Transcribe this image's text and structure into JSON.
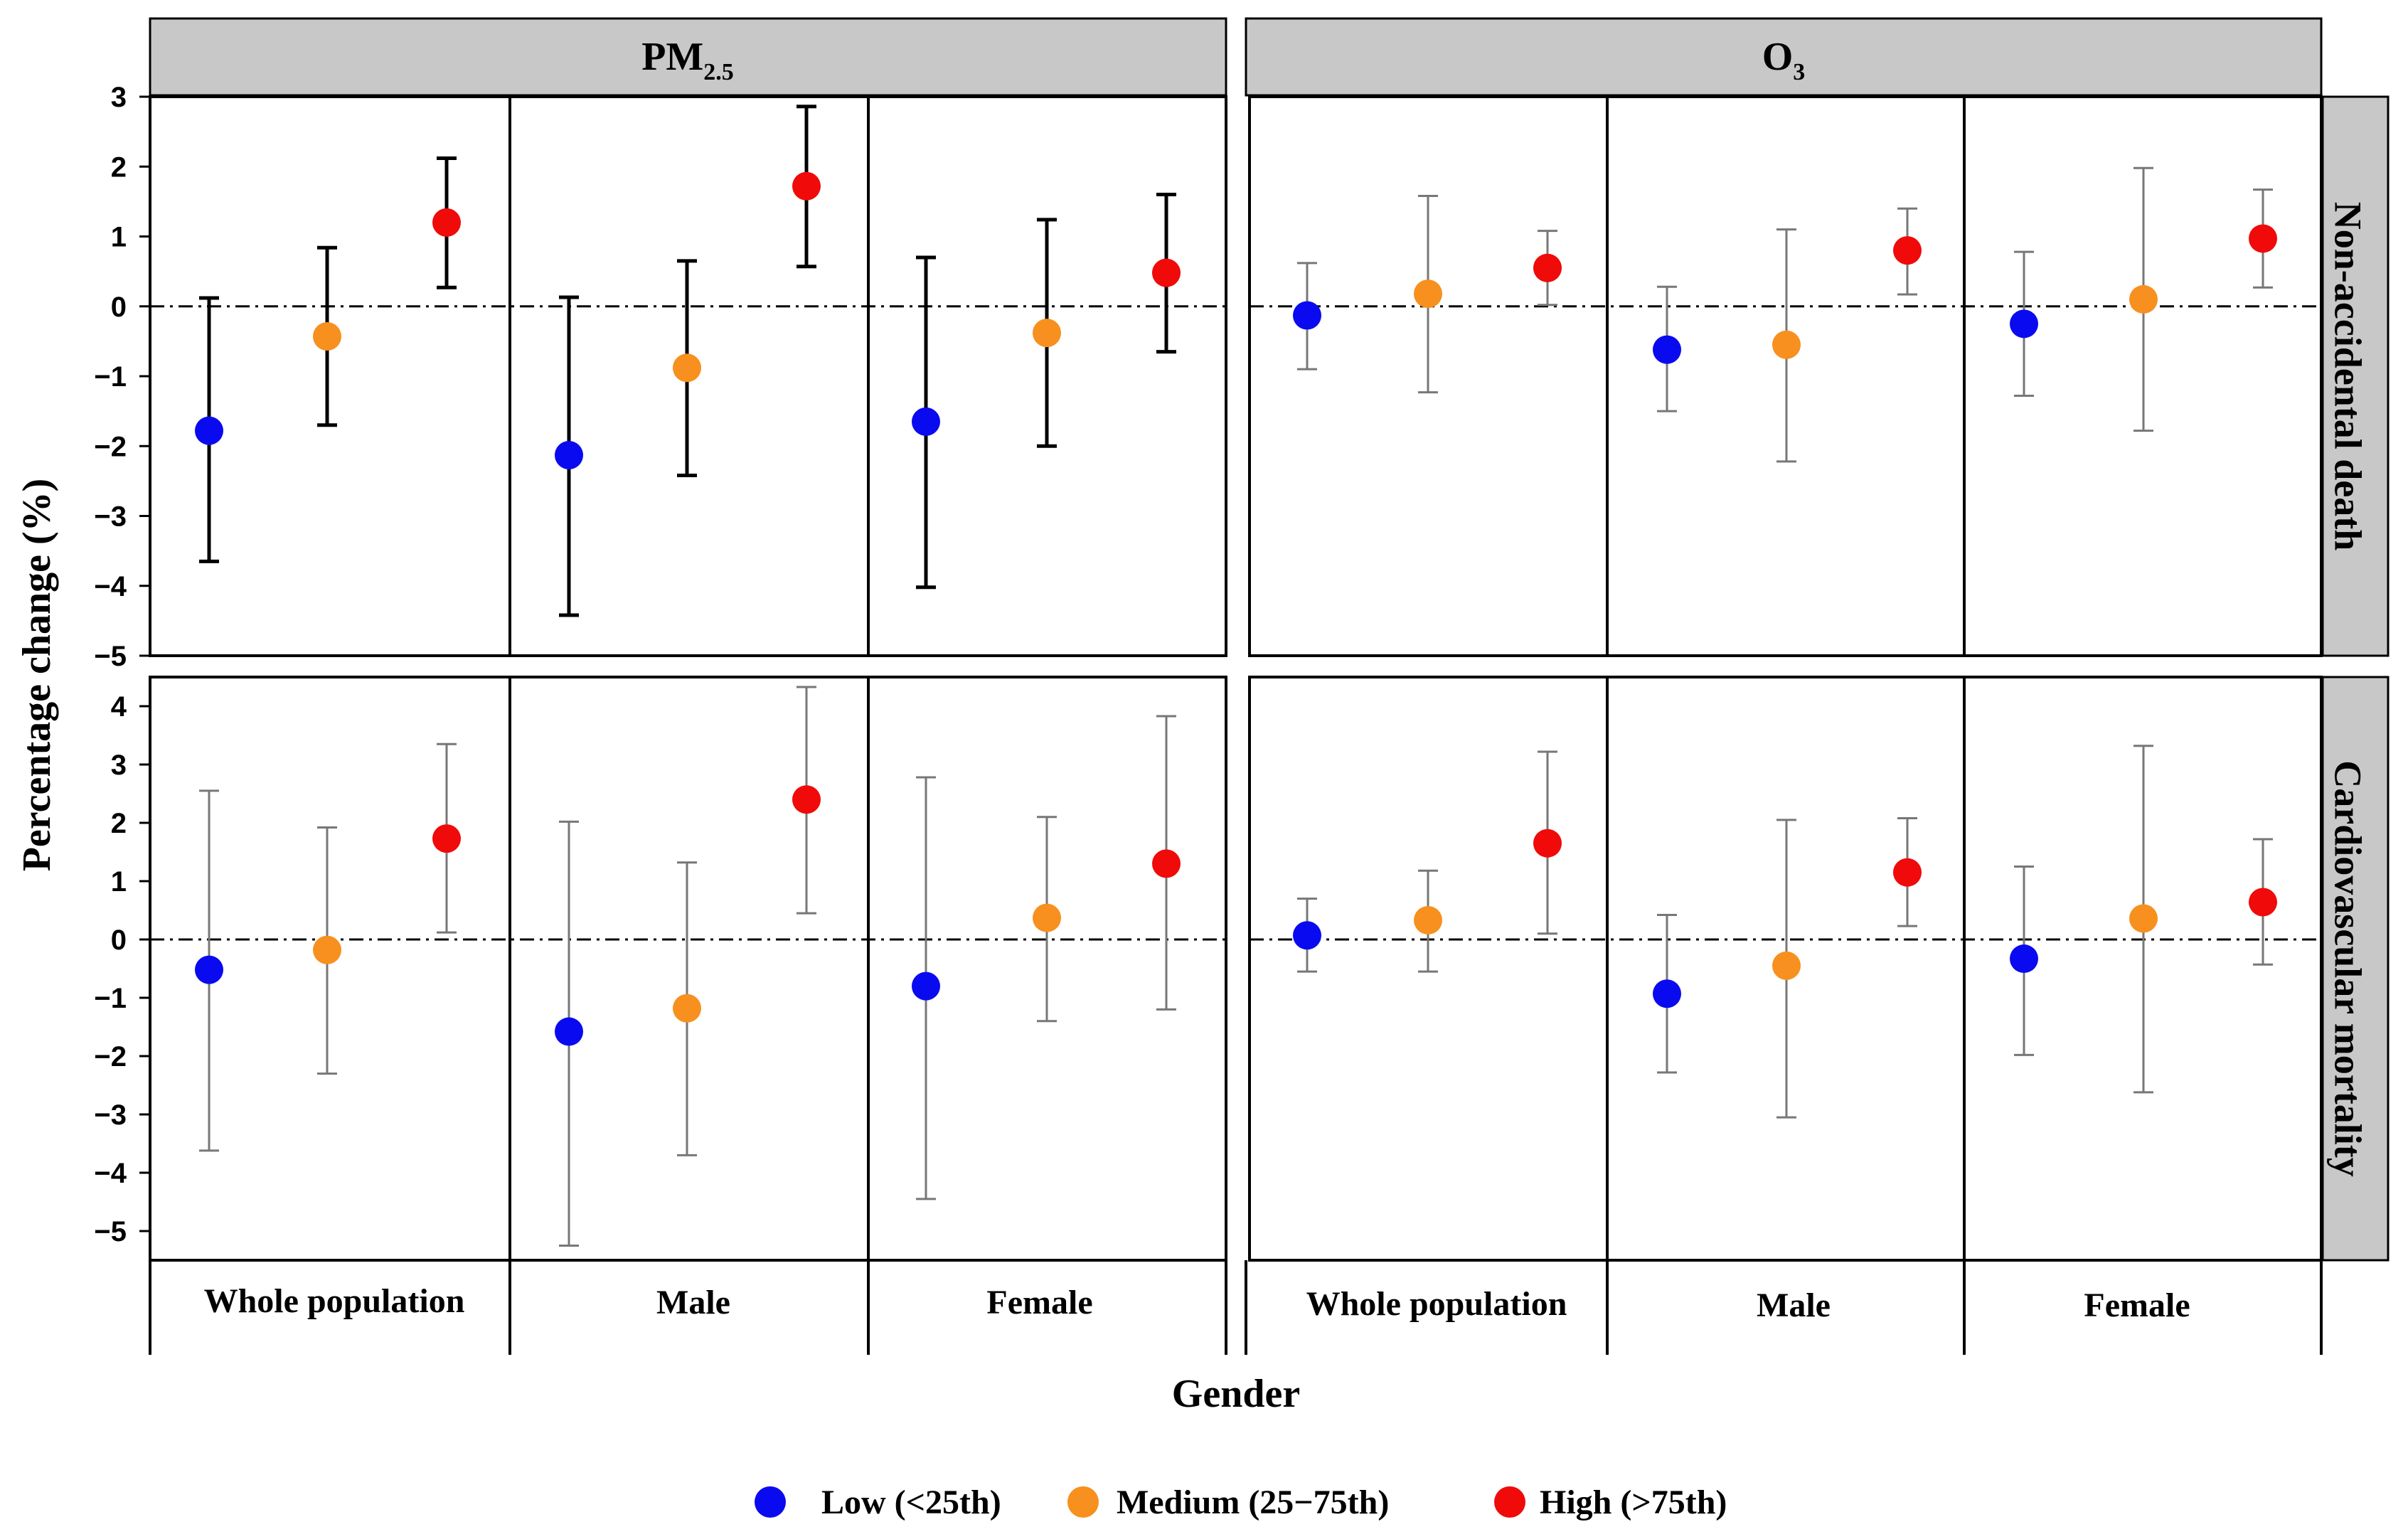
{
  "chart_data": {
    "type": "scatter",
    "subtype": "faceted point estimates with error bars",
    "xlabel": "Gender",
    "ylabel": "Percentage change (%)",
    "col_facets": [
      {
        "key": "pm25",
        "label_main": "PM",
        "label_sub": "2.5"
      },
      {
        "key": "o3",
        "label_main": "O",
        "label_sub": "3"
      }
    ],
    "row_facets": [
      {
        "key": "nad",
        "label": "Non-accidental death",
        "ylim": [
          -5,
          3
        ],
        "ticks": [
          3,
          2,
          1,
          0,
          -1,
          -2,
          -3,
          -4,
          -5
        ]
      },
      {
        "key": "cvd",
        "label": "Cardiovascular mortality",
        "ylim": [
          -5.5,
          4.5
        ],
        "ticks": [
          4,
          3,
          2,
          1,
          0,
          -1,
          -2,
          -3,
          -4,
          -5
        ]
      }
    ],
    "categories": [
      "Whole population",
      "Male",
      "Female"
    ],
    "legend": {
      "placement": "bottom",
      "items": [
        {
          "key": "low",
          "label": "Low (<25th)",
          "color": "#0a0af0"
        },
        {
          "key": "medium",
          "label": "Medium (25−75th)",
          "color": "#f7901e"
        },
        {
          "key": "high",
          "label": "High (>75th)",
          "color": "#f00a0a"
        }
      ]
    },
    "reference_line": 0,
    "series": [
      {
        "name": "Low (<25th)",
        "color": "#0a0af0",
        "values": {
          "pm25_nad": [
            [
              -1.78,
              -3.65,
              0.12
            ],
            [
              -2.13,
              -4.42,
              0.13
            ],
            [
              -1.65,
              -4.02,
              0.7
            ]
          ],
          "pm25_cvd": [
            [
              -0.52,
              -3.62,
              2.55
            ],
            [
              -1.58,
              -5.25,
              2.02
            ],
            [
              -0.8,
              -4.45,
              2.78
            ]
          ],
          "o3_nad": [
            [
              -0.13,
              -0.9,
              0.62
            ],
            [
              -0.62,
              -1.5,
              0.28
            ],
            [
              -0.25,
              -1.28,
              0.78
            ]
          ],
          "o3_cvd": [
            [
              0.07,
              -0.55,
              0.7
            ],
            [
              -0.93,
              -2.28,
              0.42
            ],
            [
              -0.33,
              -1.98,
              1.25
            ]
          ]
        }
      },
      {
        "name": "Medium (25−75th)",
        "color": "#f7901e",
        "values": {
          "pm25_nad": [
            [
              -0.43,
              -1.7,
              0.84
            ],
            [
              -0.88,
              -2.42,
              0.65
            ],
            [
              -0.38,
              -2.0,
              1.24
            ]
          ],
          "pm25_cvd": [
            [
              -0.18,
              -2.3,
              1.92
            ],
            [
              -1.18,
              -3.7,
              1.32
            ],
            [
              0.37,
              -1.4,
              2.1
            ]
          ],
          "o3_nad": [
            [
              0.18,
              -1.23,
              1.58
            ],
            [
              -0.55,
              -2.22,
              1.1
            ],
            [
              0.1,
              -1.78,
              1.98
            ]
          ],
          "o3_cvd": [
            [
              0.33,
              -0.55,
              1.18
            ],
            [
              -0.45,
              -3.05,
              2.05
            ],
            [
              0.36,
              -2.62,
              3.32
            ]
          ]
        }
      },
      {
        "name": "High (>75th)",
        "color": "#f00a0a",
        "values": {
          "pm25_nad": [
            [
              1.2,
              0.27,
              2.12
            ],
            [
              1.72,
              0.57,
              2.86
            ],
            [
              0.48,
              -0.65,
              1.6
            ]
          ],
          "pm25_cvd": [
            [
              1.73,
              0.12,
              3.35
            ],
            [
              2.4,
              0.45,
              4.33
            ],
            [
              1.3,
              -1.2,
              3.83
            ]
          ],
          "o3_nad": [
            [
              0.55,
              0.02,
              1.08
            ],
            [
              0.8,
              0.17,
              1.4
            ],
            [
              0.97,
              0.27,
              1.67
            ]
          ],
          "o3_cvd": [
            [
              1.65,
              0.1,
              3.22
            ],
            [
              1.15,
              0.23,
              2.08
            ],
            [
              0.64,
              -0.43,
              1.72
            ]
          ]
        }
      }
    ]
  }
}
